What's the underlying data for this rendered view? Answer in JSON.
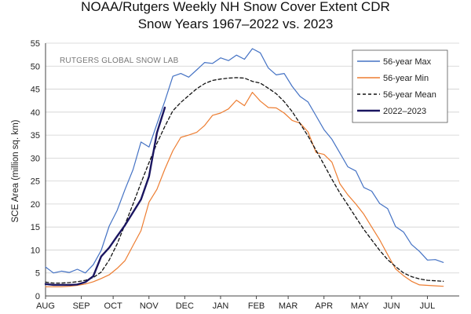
{
  "chart_data": {
    "type": "line",
    "title": "NOAA/Rutgers Weekly NH Snow Cover Extent CDR",
    "subtitle": "Snow Years 1967–2022 vs. 2023",
    "ylabel": "SCE Area (million sq. km)",
    "xlabel": "",
    "watermark": "RUTGERS GLOBAL SNOW LAB",
    "ylim": [
      0,
      55
    ],
    "yticks": [
      0,
      5,
      10,
      15,
      20,
      25,
      30,
      35,
      40,
      45,
      50,
      55
    ],
    "xlim": [
      1,
      53
    ],
    "month_ticks": [
      {
        "label": "AUG",
        "week": 1
      },
      {
        "label": "SEP",
        "week": 5.5
      },
      {
        "label": "OCT",
        "week": 9.5
      },
      {
        "label": "NOV",
        "week": 14
      },
      {
        "label": "DEC",
        "week": 18.5
      },
      {
        "label": "JAN",
        "week": 23
      },
      {
        "label": "FEB",
        "week": 27.5
      },
      {
        "label": "MAR",
        "week": 31.5
      },
      {
        "label": "APR",
        "week": 36
      },
      {
        "label": "MAY",
        "week": 40.5
      },
      {
        "label": "JUN",
        "week": 44.5
      },
      {
        "label": "JUL",
        "week": 49
      }
    ],
    "legend": "top-right",
    "series": [
      {
        "name": "56-year Max",
        "color": "#4472c4",
        "style": "solid",
        "x": [
          1,
          2,
          3,
          4,
          5,
          6,
          7,
          8,
          9,
          10,
          11,
          12,
          13,
          14,
          15,
          16,
          17,
          18,
          19,
          20,
          21,
          22,
          23,
          24,
          25,
          26,
          27,
          28,
          29,
          30,
          31,
          32,
          33,
          34,
          35,
          36,
          37,
          38,
          39,
          40,
          41,
          42,
          43,
          44,
          45,
          46,
          47,
          48,
          49,
          50,
          51,
          52,
          53
        ],
        "values": [
          6.3,
          5.0,
          5.4,
          5.1,
          5.8,
          5.0,
          6.8,
          9.9,
          15.2,
          18.6,
          23.2,
          27.5,
          33.5,
          32.4,
          37.4,
          42.4,
          47.8,
          48.4,
          47.6,
          49.2,
          50.8,
          50.6,
          51.8,
          51.2,
          52.4,
          51.5,
          53.8,
          52.9,
          49.6,
          48.1,
          48.4,
          45.6,
          43.4,
          42.2,
          39.2,
          36.2,
          34.1,
          31.1,
          28.1,
          27.2,
          23.6,
          22.8,
          20.1,
          19.0,
          15.1,
          13.9,
          11.2,
          9.7,
          7.8,
          7.9,
          7.3,
          null,
          null
        ]
      },
      {
        "name": "56-year Min",
        "color": "#ed7d31",
        "style": "solid",
        "x": [
          1,
          2,
          3,
          4,
          5,
          6,
          7,
          8,
          9,
          10,
          11,
          12,
          13,
          14,
          15,
          16,
          17,
          18,
          19,
          20,
          21,
          22,
          23,
          24,
          25,
          26,
          27,
          28,
          29,
          30,
          31,
          32,
          33,
          34,
          35,
          36,
          37,
          38,
          39,
          40,
          41,
          42,
          43,
          44,
          45,
          46,
          47,
          48,
          49,
          50,
          51,
          52,
          53
        ],
        "values": [
          2.0,
          2.0,
          2.0,
          2.1,
          2.3,
          2.6,
          3.1,
          3.8,
          4.6,
          6.0,
          7.7,
          11.0,
          14.2,
          20.4,
          23.2,
          27.6,
          31.6,
          34.5,
          35.0,
          35.6,
          37.1,
          39.3,
          39.8,
          40.7,
          42.6,
          41.4,
          44.3,
          42.4,
          41.0,
          40.9,
          39.8,
          38.2,
          37.6,
          35.7,
          31.2,
          30.8,
          29.1,
          24.4,
          22.0,
          20.0,
          17.8,
          15.0,
          12.2,
          9.0,
          5.9,
          4.4,
          3.2,
          2.4,
          2.3,
          2.2,
          2.1,
          null,
          null
        ]
      },
      {
        "name": "56-year Mean",
        "color": "#111111",
        "style": "dashed",
        "x": [
          1,
          2,
          3,
          4,
          5,
          6,
          7,
          8,
          9,
          10,
          11,
          12,
          13,
          14,
          15,
          16,
          17,
          18,
          19,
          20,
          21,
          22,
          23,
          24,
          25,
          26,
          27,
          28,
          29,
          30,
          31,
          32,
          33,
          34,
          35,
          36,
          37,
          38,
          39,
          40,
          41,
          42,
          43,
          44,
          45,
          46,
          47,
          48,
          49,
          50,
          51,
          52,
          53
        ],
        "values": [
          3.0,
          2.8,
          2.8,
          2.9,
          3.1,
          3.4,
          4.0,
          5.2,
          7.8,
          11.3,
          15.6,
          20.0,
          24.6,
          29.0,
          33.2,
          36.9,
          40.3,
          42.1,
          43.6,
          45.1,
          46.2,
          46.9,
          47.2,
          47.4,
          47.5,
          47.4,
          46.7,
          46.3,
          45.2,
          44.0,
          42.3,
          40.1,
          37.5,
          34.8,
          31.7,
          28.6,
          25.4,
          22.4,
          19.8,
          17.1,
          14.5,
          12.2,
          9.9,
          7.9,
          6.4,
          5.0,
          4.2,
          3.7,
          3.4,
          3.3,
          3.2,
          null,
          null
        ]
      },
      {
        "name": "2022–2023",
        "color": "#1a1560",
        "style": "solid",
        "x": [
          1,
          2,
          3,
          4,
          5,
          6,
          7,
          8,
          9,
          10,
          11,
          12,
          13,
          14,
          15,
          16
        ],
        "values": [
          2.6,
          2.4,
          2.4,
          2.4,
          2.5,
          3.0,
          4.3,
          8.6,
          10.5,
          13.0,
          15.4,
          18.2,
          21.0,
          26.0,
          35.5,
          41.0
        ]
      }
    ]
  }
}
